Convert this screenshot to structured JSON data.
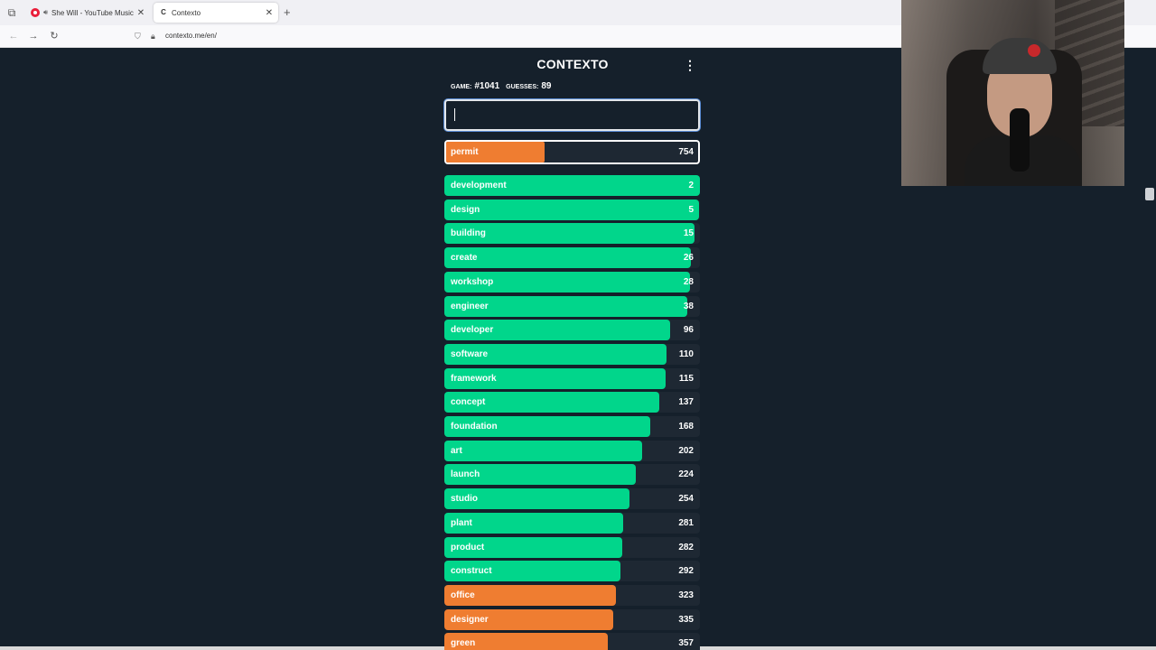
{
  "browser": {
    "tabs": [
      {
        "title": "She Will - YouTube Music",
        "icon": "youtube-music-icon",
        "active": false
      },
      {
        "title": "Contexto",
        "icon": "contexto-favicon",
        "active": true
      }
    ],
    "url": "contexto.me/en/"
  },
  "app": {
    "title": "CONTEXTO",
    "game_label": "GAME:",
    "game_number": "#1041",
    "guesses_label": "GUESSES:",
    "guesses_count": "89",
    "input_value": "",
    "current_guess": {
      "word": "permit",
      "rank": "754",
      "fill": 0.39,
      "color": "#ef7d31"
    }
  },
  "colors": {
    "green": "#01d68b",
    "orange": "#ef7d31",
    "background": "#15202b",
    "row_bg": "#1e2833"
  },
  "guesses": [
    {
      "word": "development",
      "rank": "2",
      "fill": 1.0,
      "color": "green"
    },
    {
      "word": "design",
      "rank": "5",
      "fill": 0.997,
      "color": "green"
    },
    {
      "word": "building",
      "rank": "15",
      "fill": 0.98,
      "color": "green"
    },
    {
      "word": "create",
      "rank": "26",
      "fill": 0.965,
      "color": "green"
    },
    {
      "word": "workshop",
      "rank": "28",
      "fill": 0.96,
      "color": "green"
    },
    {
      "word": "engineer",
      "rank": "38",
      "fill": 0.95,
      "color": "green"
    },
    {
      "word": "developer",
      "rank": "96",
      "fill": 0.883,
      "color": "green"
    },
    {
      "word": "software",
      "rank": "110",
      "fill": 0.87,
      "color": "green"
    },
    {
      "word": "framework",
      "rank": "115",
      "fill": 0.865,
      "color": "green"
    },
    {
      "word": "concept",
      "rank": "137",
      "fill": 0.84,
      "color": "green"
    },
    {
      "word": "foundation",
      "rank": "168",
      "fill": 0.805,
      "color": "green"
    },
    {
      "word": "art",
      "rank": "202",
      "fill": 0.773,
      "color": "green"
    },
    {
      "word": "launch",
      "rank": "224",
      "fill": 0.75,
      "color": "green"
    },
    {
      "word": "studio",
      "rank": "254",
      "fill": 0.725,
      "color": "green"
    },
    {
      "word": "plant",
      "rank": "281",
      "fill": 0.7,
      "color": "green"
    },
    {
      "word": "product",
      "rank": "282",
      "fill": 0.697,
      "color": "green"
    },
    {
      "word": "construct",
      "rank": "292",
      "fill": 0.69,
      "color": "green"
    },
    {
      "word": "office",
      "rank": "323",
      "fill": 0.67,
      "color": "orange"
    },
    {
      "word": "designer",
      "rank": "335",
      "fill": 0.66,
      "color": "orange"
    },
    {
      "word": "green",
      "rank": "357",
      "fill": 0.64,
      "color": "orange"
    }
  ]
}
